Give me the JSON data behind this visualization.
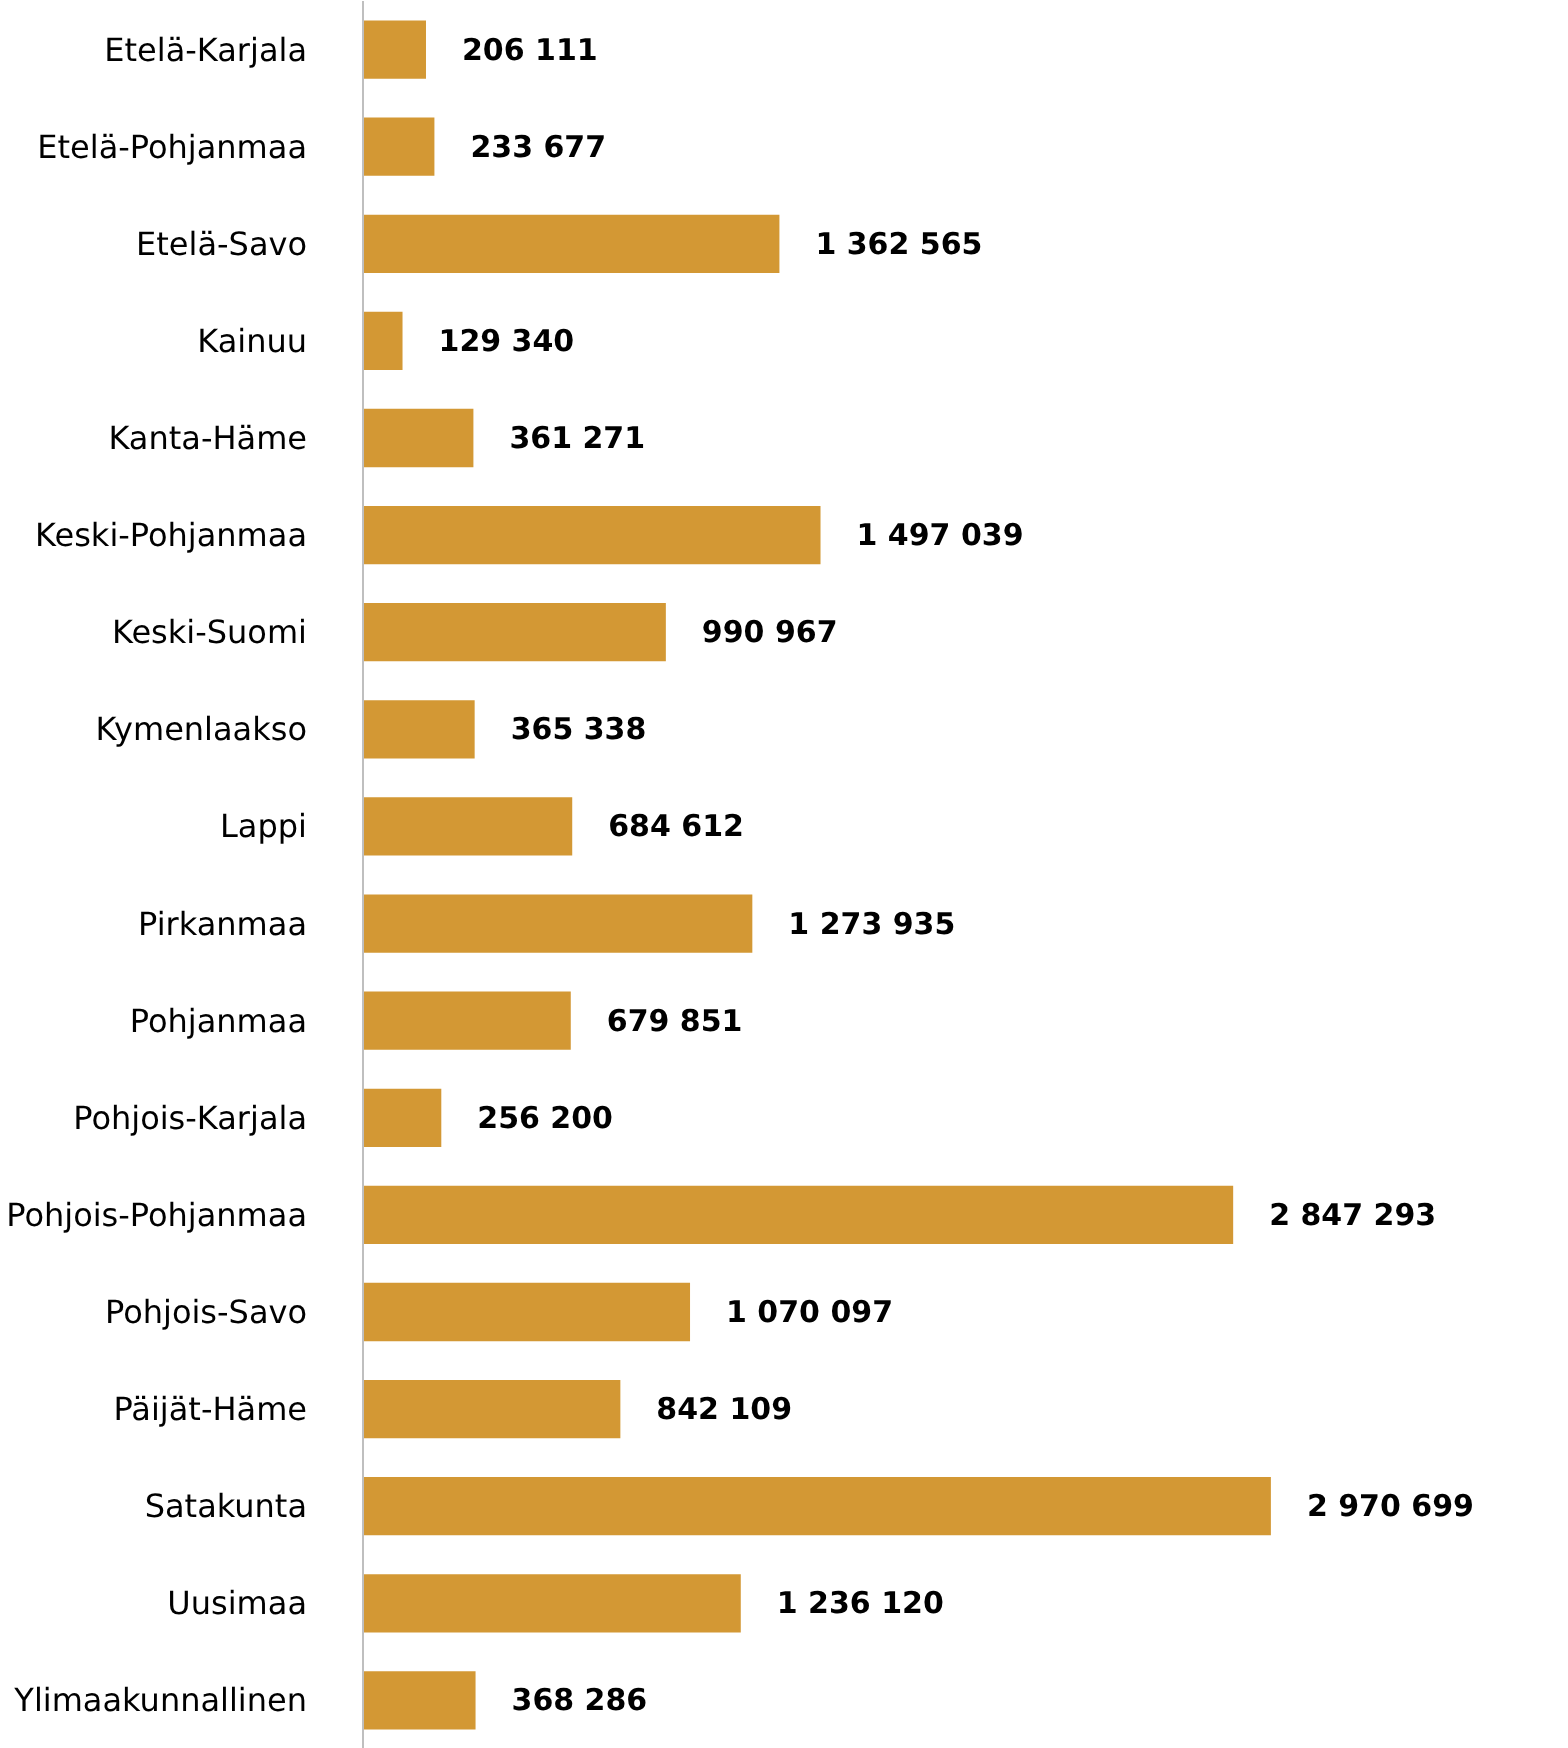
{
  "chart_data": {
    "type": "bar",
    "orientation": "horizontal",
    "categories": [
      "Etelä-Karjala",
      "Etelä-Pohjanmaa",
      "Etelä-Savo",
      "Kainuu",
      "Kanta-Häme",
      "Keski-Pohjanmaa",
      "Keski-Suomi",
      "Kymenlaakso",
      "Lappi",
      "Pirkanmaa",
      "Pohjanmaa",
      "Pohjois-Karjala",
      "Pohjois-Pohjanmaa",
      "Pohjois-Savo",
      "Päijät-Häme",
      "Satakunta",
      "Uusimaa",
      "Ylimaakunnallinen"
    ],
    "values": [
      206111,
      233677,
      1362565,
      129340,
      361271,
      1497039,
      990967,
      365338,
      684612,
      1273935,
      679851,
      256200,
      2847293,
      1070097,
      842109,
      2970699,
      1236120,
      368286
    ],
    "value_labels": [
      "206 111",
      "233 677",
      "1 362 565",
      "129 340",
      "361 271",
      "1 497 039",
      "990 967",
      "365 338",
      "684 612",
      "1 273 935",
      "679 851",
      "256 200",
      "2 847 293",
      "1 070 097",
      "842 109",
      "2 970 699",
      "1 236 120",
      "368 286"
    ],
    "color": "#d39834",
    "grid": false,
    "tick_labels": "y"
  }
}
